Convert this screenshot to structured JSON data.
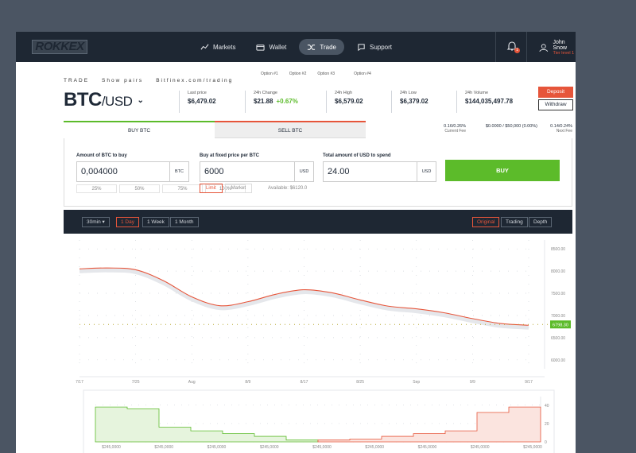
{
  "nav": {
    "logo": "ROKKEX",
    "menu": [
      {
        "label": "Markets",
        "icon": "chart-line-icon"
      },
      {
        "label": "Wallet",
        "icon": "wallet-icon"
      },
      {
        "label": "Trade",
        "icon": "shuffle-icon",
        "active": true
      },
      {
        "label": "Support",
        "icon": "chat-icon"
      }
    ],
    "notifications_count": "1",
    "user_name": "John Snow",
    "user_tier": "Tier level 1"
  },
  "options": [
    "Option #1",
    "Option #2",
    "Option #3",
    "Option #4"
  ],
  "breadcrumb": [
    "TRADE",
    "Show pairs",
    "Bitfinex.com/trading"
  ],
  "pair": {
    "base": "BTC",
    "quote": "/USD"
  },
  "stats": [
    {
      "label": "Last price",
      "value": "$6,479.02"
    },
    {
      "label": "24h Change",
      "value": "$21.88",
      "change": "+0.67%"
    },
    {
      "label": "24h High",
      "value": "$6,579.02"
    },
    {
      "label": "24h Low",
      "value": "$6,379.02"
    },
    {
      "label": "24h Volume",
      "value": "$144,035,497.78"
    }
  ],
  "actions": {
    "deposit": "Deposit",
    "withdraw": "Withdraw"
  },
  "tabs": {
    "buy": "BUY BTC",
    "sell": "SELL BTC"
  },
  "fees": [
    {
      "value": "0.16/0.26%",
      "label": "Current Fee"
    },
    {
      "value": "$0.0000 / $50,000 (0.00%)",
      "label": ""
    },
    {
      "value": "0.14/0.24%",
      "label": "Next Fee"
    }
  ],
  "form": {
    "amount_label": "Amount of BTC to buy",
    "amount_value": "0,004000",
    "amount_unit": "BTC",
    "price_label": "Buy at fixed price per BTC",
    "price_value": "6000",
    "price_unit": "USD",
    "total_label": "Total amount of USD to spend",
    "total_value": "24.00",
    "total_unit": "USD",
    "percents": [
      "25%",
      "50%",
      "75%",
      "100%"
    ],
    "order_types": [
      "Limit",
      "Market"
    ],
    "available": "Available: $6120.0",
    "buy_button": "BUY"
  },
  "chart_toolbar": {
    "interval": "30min",
    "ranges": [
      "1 Day",
      "1 Week",
      "1 Month"
    ],
    "active_range": "1 Day",
    "views": [
      "Original",
      "Trading",
      "Depth"
    ],
    "active_view": "Original"
  },
  "colors": {
    "accent": "#e6553a",
    "green": "#5cbb2a",
    "dark": "#1e2733"
  },
  "chart_data": [
    {
      "type": "line",
      "x_ticks": [
        "7/17",
        "7/25",
        "Aug",
        "8/9",
        "8/17",
        "8/25",
        "Sep",
        "9/9",
        "9/17"
      ],
      "y_ticks": [
        8500,
        8000,
        7500,
        7000,
        6500,
        6000
      ],
      "y_tick_labels": [
        "8500.00",
        "8000.00",
        "7500.00",
        "7000.00",
        "6500.00",
        "6000.00"
      ],
      "ylim": [
        5800,
        8700
      ],
      "current_price_label": "6798.30",
      "current_price": 6798.3,
      "series": [
        {
          "x": [
            0,
            0.5,
            1,
            1.5,
            2,
            2.5,
            3,
            3.5,
            4,
            4.5,
            5,
            5.5,
            6,
            6.5,
            7,
            7.5,
            8
          ],
          "values": [
            8050,
            8070,
            8030,
            7780,
            7420,
            7220,
            7310,
            7480,
            7580,
            7510,
            7350,
            7210,
            7150,
            7060,
            6930,
            6820,
            6780
          ]
        }
      ],
      "grid": true
    },
    {
      "type": "area",
      "x_tick_labels": [
        "$245,0000",
        "$245,0000",
        "$245,0000",
        "$245,0000",
        "$245,0000",
        "$245,0000",
        "$245,0000",
        "$245,0000",
        "$245,0000"
      ],
      "y_ticks": [
        40,
        20,
        0
      ],
      "ylim": [
        0,
        45
      ],
      "series": [
        {
          "name": "bids",
          "color": "#5cbb2a",
          "values": [
            38,
            38,
            36,
            36,
            16,
            16,
            12,
            12,
            9,
            9,
            6,
            6,
            2,
            2
          ]
        },
        {
          "name": "asks",
          "color": "#e6553a",
          "values": [
            2,
            2,
            3,
            3,
            6,
            6,
            9,
            9,
            12,
            12,
            32,
            32,
            38,
            38
          ]
        }
      ]
    }
  ]
}
